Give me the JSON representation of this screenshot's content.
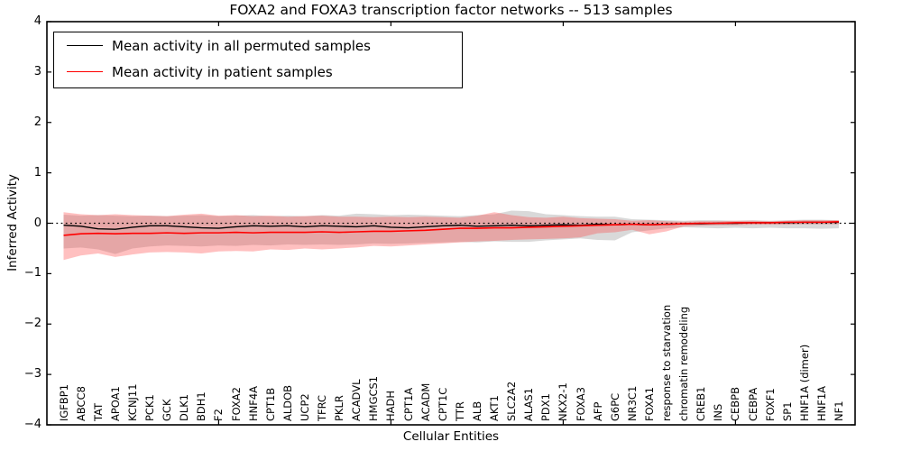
{
  "title": "FOXA2 and FOXA3 transcription factor networks -- 513 samples",
  "legend": {
    "items": [
      {
        "label": "Mean activity in all permuted samples",
        "color": "#000000"
      },
      {
        "label": "Mean activity in patient samples",
        "color": "#ff0000"
      }
    ]
  },
  "axes": {
    "ylabel": "Inferred Activity",
    "xlabel": "Cellular Entities"
  },
  "colors": {
    "permuted_line": "#000000",
    "patient_line": "#ff0000",
    "permuted_band": "#787878",
    "patient_band": "#ff3c3c",
    "axis": "#000000"
  },
  "chart_data": {
    "type": "line",
    "title": "FOXA2 and FOXA3 transcription factor networks -- 513 samples",
    "xlabel": "Cellular Entities",
    "ylabel": "Inferred Activity",
    "ylim": [
      -4,
      4
    ],
    "yticks": [
      4,
      3,
      2,
      1,
      0,
      -1,
      -2,
      -3,
      -4
    ],
    "grid": false,
    "zero_line": 0,
    "legend_position": "upper left",
    "categories": [
      "IGFBP1",
      "ABCC8",
      "TAT",
      "APOA1",
      "KCNJ11",
      "PCK1",
      "GCK",
      "DLK1",
      "BDH1",
      "F2",
      "FOXA2",
      "HNF4A",
      "CPT1B",
      "ALDOB",
      "UCP2",
      "TFRC",
      "PKLR",
      "ACADVL",
      "HMGCS1",
      "HADH",
      "CPT1A",
      "ACADM",
      "CPT1C",
      "TTR",
      "ALB",
      "AKT1",
      "SLC2A2",
      "ALAS1",
      "PDX1",
      "NKX2-1",
      "FOXA3",
      "AFP",
      "G6PC",
      "NR3C1",
      "FOXA1",
      "response to starvation",
      "chromatin remodeling",
      "CREB1",
      "INS",
      "CEBPB",
      "CEBPA",
      "FOXF1",
      "SP1",
      "HNF1A (dimer)",
      "HNF1A",
      "NF1"
    ],
    "series": [
      {
        "name": "Mean activity in all permuted samples",
        "color": "#000000",
        "width": 1.4,
        "values": [
          -0.04,
          -0.06,
          -0.11,
          -0.12,
          -0.08,
          -0.05,
          -0.05,
          -0.07,
          -0.09,
          -0.1,
          -0.07,
          -0.05,
          -0.06,
          -0.05,
          -0.07,
          -0.05,
          -0.06,
          -0.07,
          -0.05,
          -0.08,
          -0.09,
          -0.07,
          -0.05,
          -0.04,
          -0.06,
          -0.05,
          -0.04,
          -0.05,
          -0.04,
          -0.03,
          -0.04,
          -0.02,
          -0.03,
          -0.02,
          -0.03,
          -0.02,
          -0.01,
          -0.01,
          0.0,
          0.0,
          0.01,
          0.01,
          0.01,
          0.02,
          0.02,
          0.02
        ]
      },
      {
        "name": "Mean activity in patient samples",
        "color": "#ff0000",
        "width": 1.6,
        "values": [
          -0.24,
          -0.21,
          -0.2,
          -0.21,
          -0.2,
          -0.2,
          -0.19,
          -0.2,
          -0.19,
          -0.19,
          -0.18,
          -0.19,
          -0.18,
          -0.18,
          -0.18,
          -0.17,
          -0.18,
          -0.17,
          -0.16,
          -0.16,
          -0.15,
          -0.14,
          -0.12,
          -0.1,
          -0.1,
          -0.09,
          -0.09,
          -0.08,
          -0.07,
          -0.06,
          -0.05,
          -0.04,
          -0.03,
          -0.02,
          -0.03,
          -0.02,
          -0.01,
          0.0,
          0.0,
          0.01,
          0.01,
          0.01,
          0.02,
          0.02,
          0.02,
          0.03
        ]
      }
    ],
    "bands": [
      {
        "name": "permuted-std-band",
        "color": "#787878",
        "opacity": 0.28,
        "top": [
          0.17,
          0.15,
          0.16,
          0.15,
          0.14,
          0.15,
          0.14,
          0.15,
          0.16,
          0.14,
          0.15,
          0.16,
          0.14,
          0.15,
          0.14,
          0.16,
          0.15,
          0.19,
          0.18,
          0.16,
          0.17,
          0.16,
          0.15,
          0.14,
          0.16,
          0.18,
          0.25,
          0.24,
          0.18,
          0.16,
          0.14,
          0.13,
          0.13,
          0.08,
          0.07,
          0.06,
          0.05,
          0.06,
          0.06,
          0.05,
          0.06,
          0.05,
          0.06,
          0.07,
          0.07,
          0.06
        ],
        "bottom": [
          -0.5,
          -0.48,
          -0.52,
          -0.61,
          -0.5,
          -0.46,
          -0.44,
          -0.45,
          -0.46,
          -0.44,
          -0.45,
          -0.43,
          -0.44,
          -0.42,
          -0.43,
          -0.42,
          -0.43,
          -0.42,
          -0.4,
          -0.41,
          -0.4,
          -0.39,
          -0.38,
          -0.37,
          -0.38,
          -0.36,
          -0.37,
          -0.37,
          -0.34,
          -0.32,
          -0.3,
          -0.33,
          -0.34,
          -0.18,
          -0.14,
          -0.1,
          -0.08,
          -0.09,
          -0.1,
          -0.09,
          -0.1,
          -0.09,
          -0.1,
          -0.1,
          -0.11,
          -0.1
        ]
      },
      {
        "name": "patient-std-band",
        "color": "#ff3c3c",
        "opacity": 0.32,
        "top": [
          0.22,
          0.18,
          0.16,
          0.18,
          0.16,
          0.15,
          0.14,
          0.17,
          0.19,
          0.15,
          0.16,
          0.14,
          0.15,
          0.13,
          0.14,
          0.15,
          0.13,
          0.13,
          0.12,
          0.13,
          0.12,
          0.13,
          0.12,
          0.11,
          0.15,
          0.22,
          0.16,
          0.12,
          0.11,
          0.13,
          0.1,
          0.09,
          0.08,
          0.05,
          0.06,
          0.04,
          0.03,
          0.04,
          0.04,
          0.05,
          0.05,
          0.04,
          0.05,
          0.06,
          0.06,
          0.06
        ],
        "bottom": [
          -0.73,
          -0.64,
          -0.6,
          -0.67,
          -0.62,
          -0.58,
          -0.57,
          -0.58,
          -0.6,
          -0.56,
          -0.55,
          -0.56,
          -0.52,
          -0.53,
          -0.5,
          -0.52,
          -0.5,
          -0.48,
          -0.45,
          -0.46,
          -0.44,
          -0.42,
          -0.4,
          -0.38,
          -0.36,
          -0.35,
          -0.33,
          -0.32,
          -0.31,
          -0.3,
          -0.28,
          -0.2,
          -0.18,
          -0.13,
          -0.22,
          -0.16,
          -0.06,
          -0.05,
          -0.04,
          -0.04,
          -0.03,
          -0.03,
          -0.03,
          -0.02,
          -0.02,
          -0.02
        ]
      }
    ]
  }
}
